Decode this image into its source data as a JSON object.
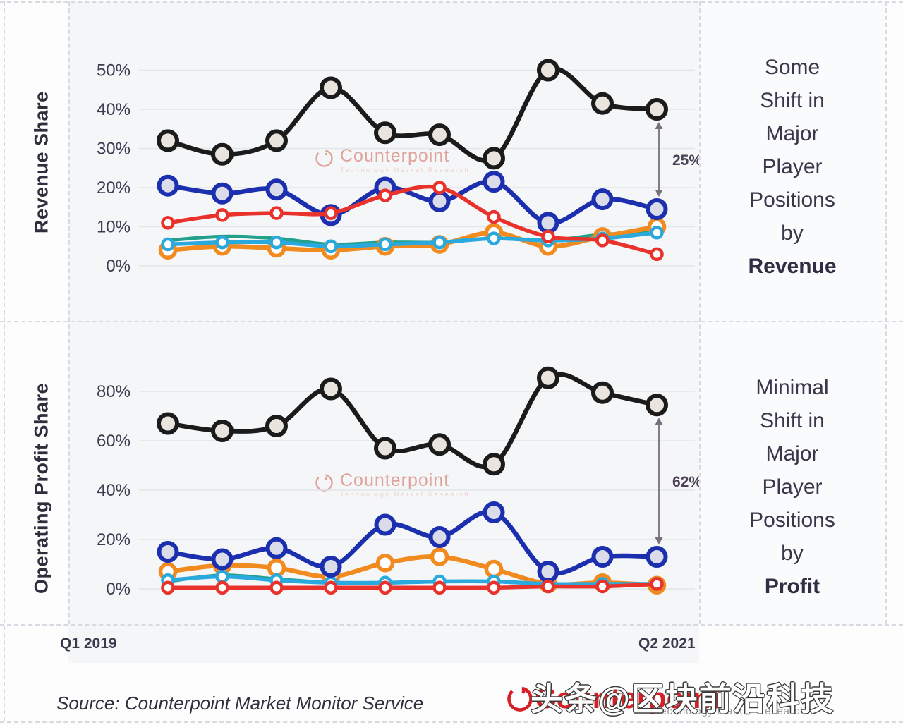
{
  "colors": {
    "grid": "#e2e5e9",
    "axis_text": "#3c3c50",
    "dashed_line": "#d7dbe1",
    "arrow": "#76717c",
    "annotation_text": "#4a4254",
    "watermark_pink": "#dfa49c",
    "watermark_pink_light": "#eed2cc",
    "logo_red": "#d42127",
    "panel_bg": "#f5f6f8"
  },
  "x_axis": {
    "start_label": "Q1 2019",
    "end_label": "Q2 2021"
  },
  "side_captions": [
    {
      "lines": [
        "Some",
        "Shift in",
        "Major",
        "Player",
        "Positions",
        "by"
      ],
      "emphasis": "Revenue"
    },
    {
      "lines": [
        "Minimal",
        "Shift in",
        "Major",
        "Player",
        "Positions",
        "by"
      ],
      "emphasis": "Profit"
    }
  ],
  "chart_watermark": {
    "brand": "Counterpoint",
    "tagline": "Technology Market Research"
  },
  "footer": {
    "source_text": "Source: Counterpoint Market Monitor Service",
    "logo_text": "Counterpoint",
    "logo_subtext": "Technology Market Research"
  },
  "watermark_overlay": {
    "text": "头条@区块前沿科技"
  },
  "chart_data": [
    {
      "type": "line",
      "title": "Revenue Share",
      "ylabel": "Revenue Share",
      "x_labels_visible": [
        "Q1 2019",
        "Q2 2021"
      ],
      "n_points": 10,
      "ylim": [
        0,
        55
      ],
      "grid": true,
      "legend": "none",
      "yticks": [
        0,
        10,
        20,
        30,
        40,
        50
      ],
      "ytick_labels": [
        "0%",
        "10%",
        "20%",
        "30%",
        "40%",
        "50%"
      ],
      "series": [
        {
          "name": "teal",
          "color": "#21a08b",
          "marker_fill": "#ffffff",
          "values": [
            6.5,
            7.5,
            7,
            5.5,
            6,
            6,
            7,
            6.5,
            8,
            8.5
          ]
        },
        {
          "name": "orange",
          "color": "#f18a1f",
          "marker_fill": "#ffffff",
          "values": [
            4,
            5,
            4.5,
            4,
            5,
            5.5,
            8.5,
            5,
            7.5,
            10
          ]
        },
        {
          "name": "cyan",
          "color": "#2aa9de",
          "marker_fill": "#ffffff",
          "values": [
            5.5,
            6,
            6,
            5,
            5.5,
            6,
            7,
            6.5,
            7,
            8.5
          ]
        },
        {
          "name": "blue",
          "color": "#1c2fae",
          "marker_fill": "#dbdcea",
          "values": [
            20.5,
            18.5,
            19.5,
            13,
            20,
            16.5,
            21.5,
            11,
            17,
            14.5
          ]
        },
        {
          "name": "red",
          "color": "#e9322b",
          "marker_fill": "#ffffff",
          "values": [
            11,
            13,
            13.5,
            13.5,
            18,
            20,
            12.5,
            7.5,
            6.5,
            3
          ]
        },
        {
          "name": "black",
          "color": "#1b1b1b",
          "marker_fill": "#e9e5de",
          "values": [
            32,
            28.5,
            32,
            45.5,
            34,
            33.5,
            27.5,
            50,
            41.5,
            40
          ]
        }
      ],
      "annotation": {
        "label": "25%",
        "between": [
          "black",
          "blue"
        ],
        "point_index": 9
      }
    },
    {
      "type": "line",
      "title": "Operating Profit Share",
      "ylabel": "Operating Profit Share",
      "x_labels_visible": [
        "Q1 2019",
        "Q2 2021"
      ],
      "n_points": 10,
      "ylim": [
        0,
        90
      ],
      "grid": true,
      "legend": "none",
      "yticks": [
        0,
        20,
        40,
        60,
        80
      ],
      "ytick_labels": [
        "0%",
        "20%",
        "40%",
        "60%",
        "80%"
      ],
      "series": [
        {
          "name": "teal",
          "color": "#21a08b",
          "marker_fill": "#ffffff",
          "values": [
            3,
            5.5,
            4,
            2.5,
            2.5,
            3,
            3,
            2,
            2,
            2
          ]
        },
        {
          "name": "orange",
          "color": "#f18a1f",
          "marker_fill": "#ffffff",
          "values": [
            7,
            9.5,
            8.5,
            5,
            10.5,
            13,
            8,
            2,
            2.5,
            1.5
          ]
        },
        {
          "name": "cyan",
          "color": "#2aa9de",
          "marker_fill": "#ffffff",
          "values": [
            3.5,
            5,
            3.5,
            2.5,
            2.5,
            3,
            3,
            2,
            2,
            2
          ]
        },
        {
          "name": "blue",
          "color": "#1c2fae",
          "marker_fill": "#dbdcea",
          "values": [
            15,
            12,
            16.5,
            9,
            26,
            21,
            31,
            7,
            13,
            13
          ]
        },
        {
          "name": "red",
          "color": "#e9322b",
          "marker_fill": "#ffffff",
          "values": [
            0.5,
            0.5,
            0.5,
            0.5,
            0.5,
            0.5,
            0.5,
            1,
            1,
            2
          ]
        },
        {
          "name": "black",
          "color": "#1b1b1b",
          "marker_fill": "#e9e5de",
          "values": [
            67,
            64,
            66,
            81,
            57,
            58.5,
            50.5,
            85.5,
            79.5,
            74.5
          ]
        }
      ],
      "annotation": {
        "label": "62%",
        "between": [
          "black",
          "blue"
        ],
        "point_index": 9
      }
    }
  ]
}
